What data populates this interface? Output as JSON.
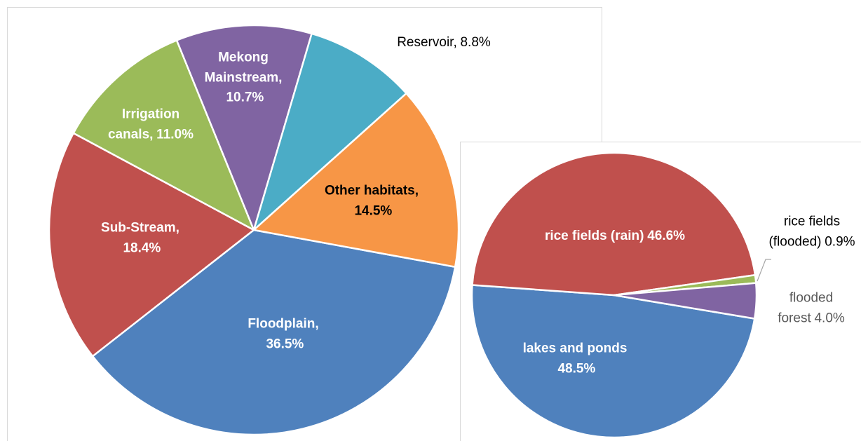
{
  "chart_data": [
    {
      "type": "pie",
      "categories": [
        "Floodplain,",
        "Sub-Stream,",
        "Irrigation canals,",
        "Mekong Mainstream,",
        "Reservoir,",
        "Other habitats,"
      ],
      "values": [
        36.5,
        18.4,
        11.0,
        10.7,
        8.8,
        14.5
      ],
      "value_labels": [
        "36.5%",
        "18.4%",
        "11.0%",
        "10.7%",
        "8.8%",
        "14.5%"
      ],
      "colors": [
        "#4f81bd",
        "#c0504d",
        "#9bbb59",
        "#8064a2",
        "#4bacc6",
        "#f79646"
      ]
    },
    {
      "type": "pie",
      "categories": [
        "lakes and ponds",
        "rice fields (rain)",
        "rice fields (flooded)",
        "flooded forest"
      ],
      "values": [
        48.5,
        46.6,
        0.9,
        4.0
      ],
      "value_labels": [
        "48.5%",
        "46.6%",
        "0.9%",
        "4.0%"
      ],
      "colors": [
        "#4f81bd",
        "#c0504d",
        "#9bbb59",
        "#8064a2"
      ]
    }
  ]
}
